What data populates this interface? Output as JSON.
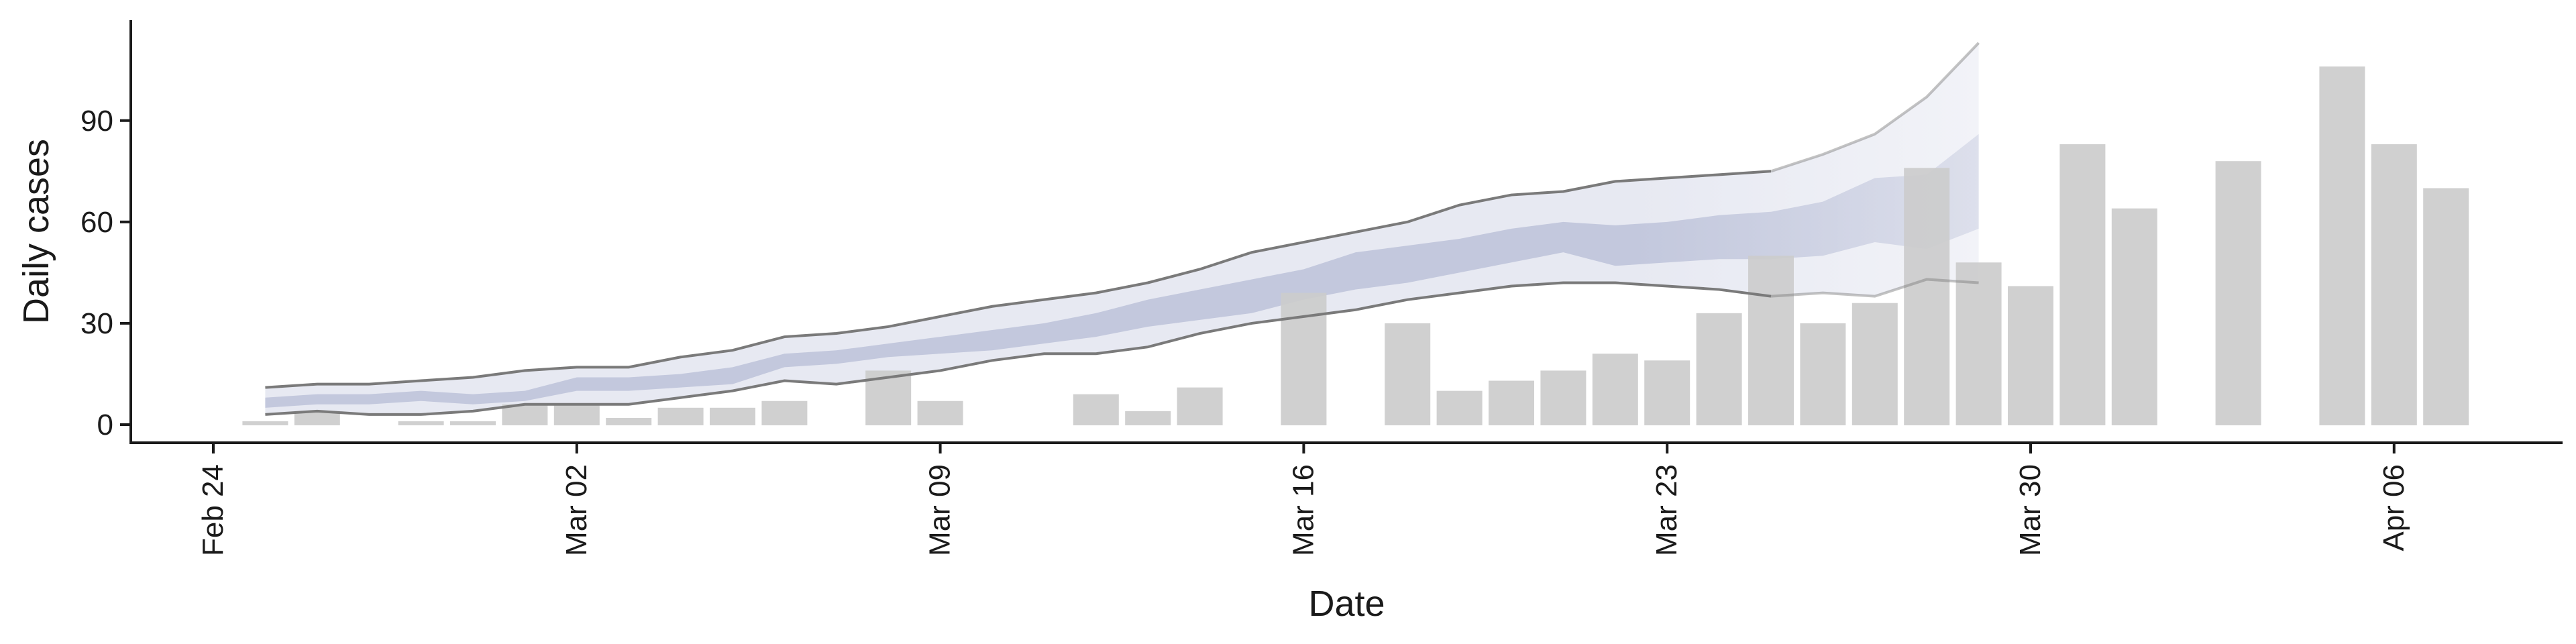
{
  "chart_data": {
    "type": "bar",
    "title": "",
    "xlabel": "Date",
    "ylabel": "Daily cases",
    "x_start": "2020-02-24",
    "x_end": "2020-04-08",
    "ylim": [
      -5,
      120
    ],
    "yticks": [
      0,
      30,
      60,
      90
    ],
    "xticks": [
      {
        "date": "2020-02-24",
        "label": "Feb 24"
      },
      {
        "date": "2020-03-02",
        "label": "Mar 02"
      },
      {
        "date": "2020-03-09",
        "label": "Mar 09"
      },
      {
        "date": "2020-03-16",
        "label": "Mar 16"
      },
      {
        "date": "2020-03-23",
        "label": "Mar 23"
      },
      {
        "date": "2020-03-30",
        "label": "Mar 30"
      },
      {
        "date": "2020-04-06",
        "label": "Apr 06"
      }
    ],
    "grid": false,
    "legend": "none",
    "bar_color": "#cccccc",
    "bars": [
      {
        "date": "2020-02-25",
        "value": 1
      },
      {
        "date": "2020-02-26",
        "value": 4
      },
      {
        "date": "2020-02-28",
        "value": 1
      },
      {
        "date": "2020-02-29",
        "value": 1
      },
      {
        "date": "2020-03-01",
        "value": 6
      },
      {
        "date": "2020-03-02",
        "value": 6
      },
      {
        "date": "2020-03-03",
        "value": 2
      },
      {
        "date": "2020-03-04",
        "value": 5
      },
      {
        "date": "2020-03-05",
        "value": 5
      },
      {
        "date": "2020-03-06",
        "value": 7
      },
      {
        "date": "2020-03-08",
        "value": 16
      },
      {
        "date": "2020-03-09",
        "value": 7
      },
      {
        "date": "2020-03-12",
        "value": 9
      },
      {
        "date": "2020-03-13",
        "value": 4
      },
      {
        "date": "2020-03-14",
        "value": 11
      },
      {
        "date": "2020-03-16",
        "value": 39
      },
      {
        "date": "2020-03-18",
        "value": 30
      },
      {
        "date": "2020-03-19",
        "value": 10
      },
      {
        "date": "2020-03-20",
        "value": 13
      },
      {
        "date": "2020-03-21",
        "value": 16
      },
      {
        "date": "2020-03-22",
        "value": 21
      },
      {
        "date": "2020-03-23",
        "value": 19
      },
      {
        "date": "2020-03-24",
        "value": 33
      },
      {
        "date": "2020-03-25",
        "value": 50
      },
      {
        "date": "2020-03-26",
        "value": 30
      },
      {
        "date": "2020-03-27",
        "value": 36
      },
      {
        "date": "2020-03-28",
        "value": 76
      },
      {
        "date": "2020-03-29",
        "value": 48
      },
      {
        "date": "2020-03-30",
        "value": 41
      },
      {
        "date": "2020-03-31",
        "value": 83
      },
      {
        "date": "2020-04-01",
        "value": 64
      },
      {
        "date": "2020-04-03",
        "value": 78
      },
      {
        "date": "2020-04-05",
        "value": 106
      },
      {
        "date": "2020-04-06",
        "value": 83
      },
      {
        "date": "2020-04-07",
        "value": 70
      }
    ],
    "estimate": {
      "dates": [
        "2020-02-25",
        "2020-02-26",
        "2020-02-27",
        "2020-02-28",
        "2020-02-29",
        "2020-03-01",
        "2020-03-02",
        "2020-03-03",
        "2020-03-04",
        "2020-03-05",
        "2020-03-06",
        "2020-03-07",
        "2020-03-08",
        "2020-03-09",
        "2020-03-10",
        "2020-03-11",
        "2020-03-12",
        "2020-03-13",
        "2020-03-14",
        "2020-03-15",
        "2020-03-16",
        "2020-03-17",
        "2020-03-18",
        "2020-03-19",
        "2020-03-20",
        "2020-03-21",
        "2020-03-22",
        "2020-03-23",
        "2020-03-24",
        "2020-03-25",
        "2020-03-26",
        "2020-03-27",
        "2020-03-28",
        "2020-03-29"
      ],
      "upper_90": [
        11,
        12,
        12,
        13,
        14,
        16,
        17,
        17,
        20,
        22,
        26,
        27,
        29,
        32,
        35,
        37,
        39,
        42,
        46,
        51,
        54,
        57,
        60,
        65,
        68,
        69,
        72,
        73,
        74,
        75,
        80,
        86,
        97,
        113
      ],
      "lower_90": [
        3,
        4,
        3,
        3,
        4,
        6,
        6,
        6,
        8,
        10,
        13,
        12,
        14,
        16,
        19,
        21,
        21,
        23,
        27,
        30,
        32,
        34,
        37,
        39,
        41,
        42,
        42,
        41,
        40,
        38,
        39,
        38,
        43,
        42
      ],
      "upper_50": [
        8,
        9,
        9,
        10,
        9,
        10,
        14,
        14,
        15,
        17,
        21,
        22,
        24,
        26,
        28,
        30,
        33,
        37,
        40,
        43,
        46,
        51,
        53,
        55,
        58,
        60,
        59,
        60,
        62,
        63,
        66,
        73,
        74,
        86
      ],
      "lower_50": [
        5,
        6,
        6,
        7,
        6,
        7,
        10,
        10,
        11,
        12,
        17,
        18,
        20,
        21,
        22,
        24,
        26,
        29,
        31,
        33,
        37,
        40,
        42,
        45,
        48,
        51,
        47,
        48,
        49,
        49,
        50,
        54,
        52,
        58
      ],
      "band90_color": "#e6e8f1",
      "band50_color": "#c5c9dc",
      "line_color": "#7a7a7a"
    }
  }
}
